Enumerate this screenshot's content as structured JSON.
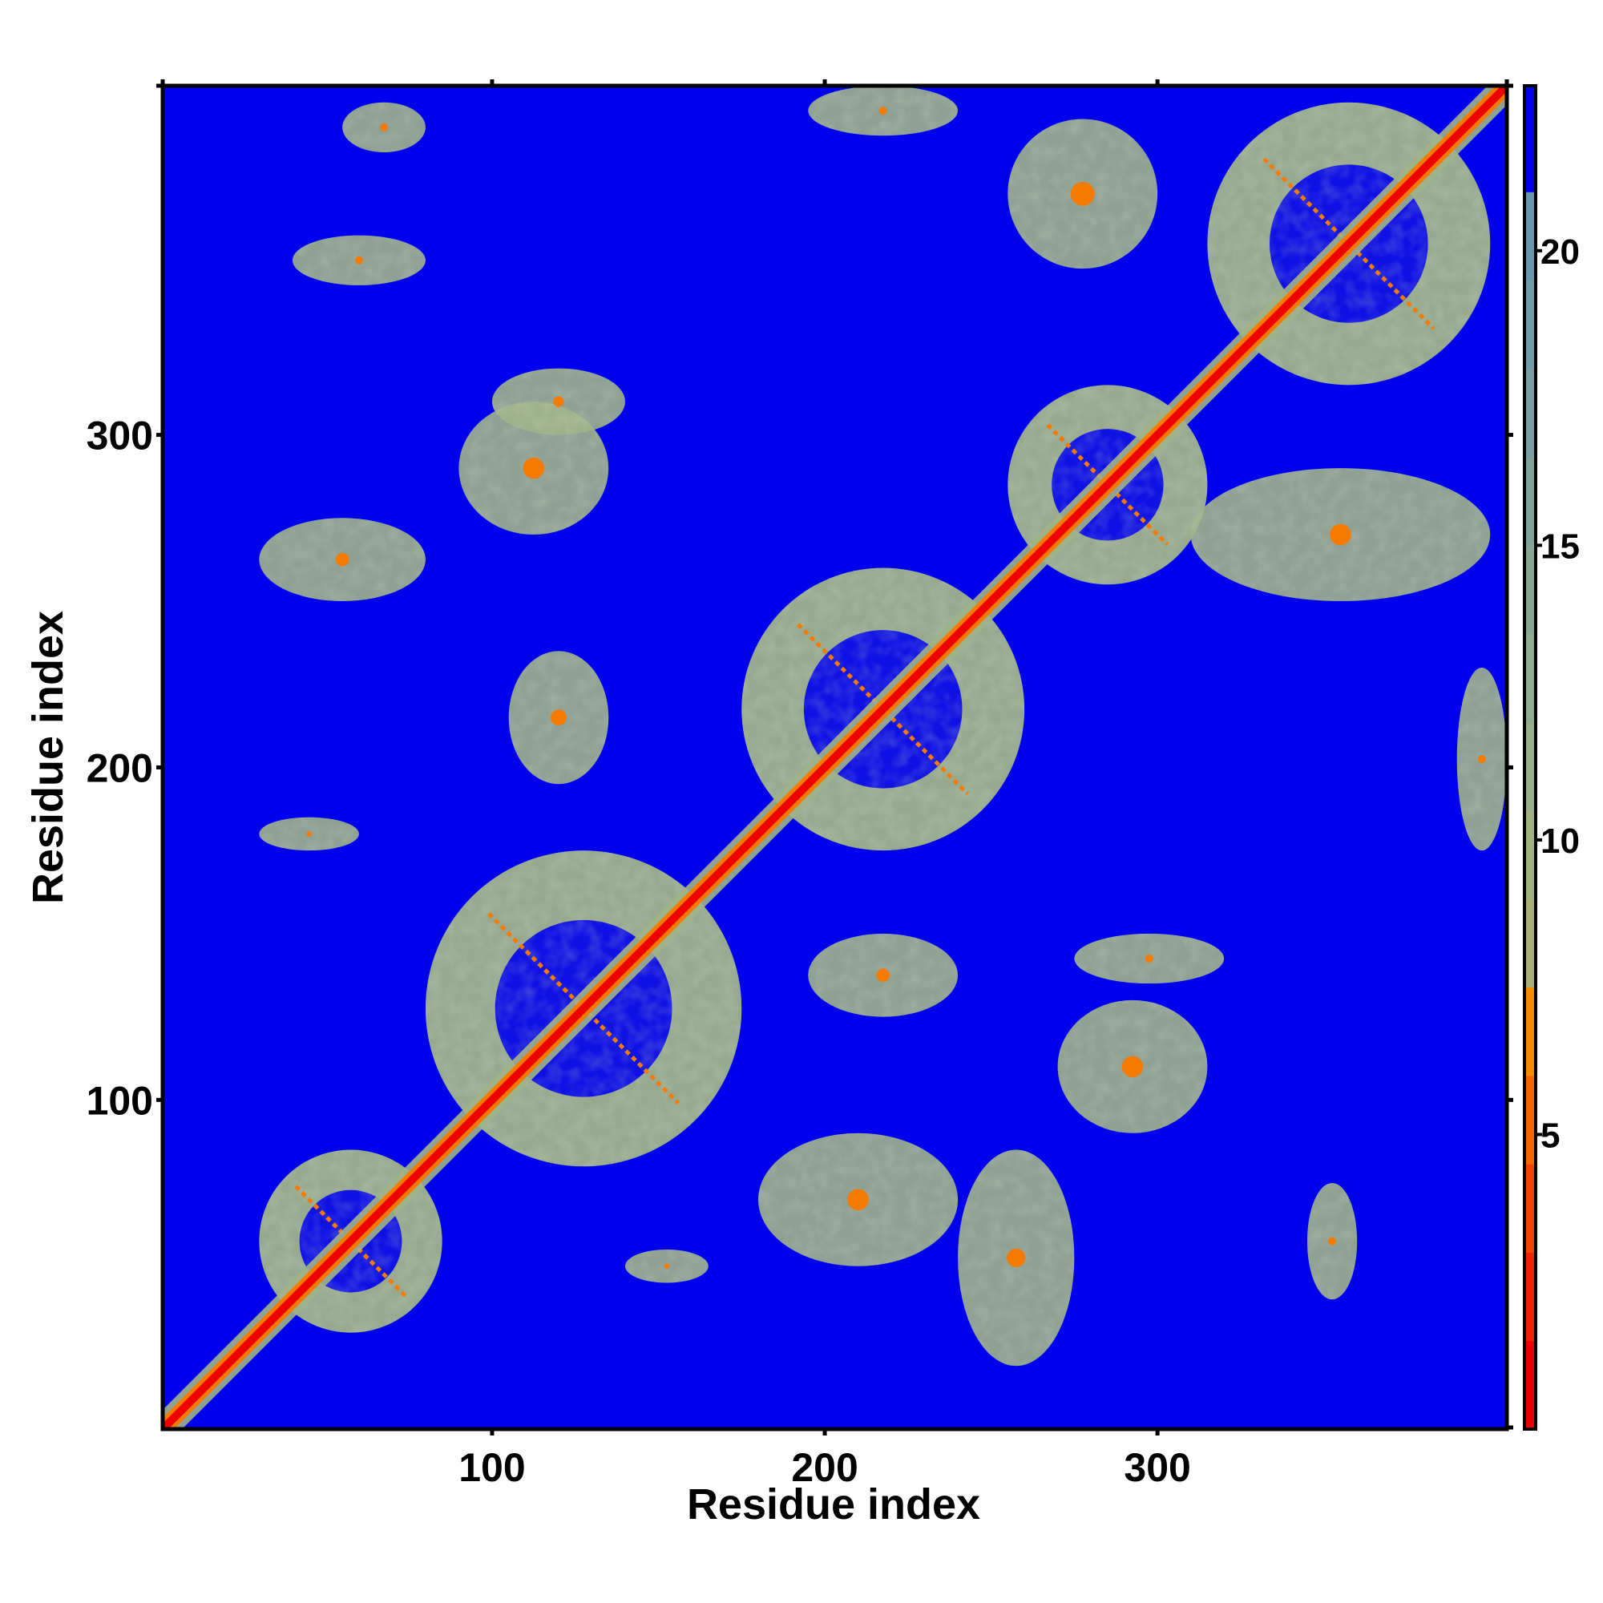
{
  "chart_data": {
    "type": "heatmap",
    "title": "",
    "xlabel": "Residue index",
    "ylabel": "Residue index",
    "xlim": [
      1,
      405
    ],
    "ylim": [
      1,
      405
    ],
    "x_ticks": [
      100,
      200,
      300
    ],
    "y_ticks": [
      100,
      200,
      300
    ],
    "colorbar": {
      "range": [
        0,
        22.8
      ],
      "ticks": [
        5,
        10,
        15,
        20
      ],
      "bands": [
        {
          "from": 0,
          "to": 1.5,
          "color": "#ee0000"
        },
        {
          "from": 1.5,
          "to": 3.0,
          "color": "#f02200"
        },
        {
          "from": 3.0,
          "to": 4.5,
          "color": "#f24400"
        },
        {
          "from": 4.5,
          "to": 6.0,
          "color": "#f46800"
        },
        {
          "from": 6.0,
          "to": 7.5,
          "color": "#f88a00"
        },
        {
          "from": 7.5,
          "to": 9.0,
          "color": "#a8b078"
        },
        {
          "from": 9.0,
          "to": 10.5,
          "color": "#9fb082"
        },
        {
          "from": 10.5,
          "to": 12.0,
          "color": "#98ae88"
        },
        {
          "from": 12.0,
          "to": 13.5,
          "color": "#90aa8e"
        },
        {
          "from": 13.5,
          "to": 15.0,
          "color": "#88a694"
        },
        {
          "from": 15.0,
          "to": 16.5,
          "color": "#80a29a"
        },
        {
          "from": 16.5,
          "to": 18.0,
          "color": "#789ea0"
        },
        {
          "from": 18.0,
          "to": 19.5,
          "color": "#709aa6"
        },
        {
          "from": 19.5,
          "to": 21.0,
          "color": "#6896ac"
        },
        {
          "from": 21.0,
          "to": 22.8,
          "color": "#0000ee"
        }
      ]
    },
    "background_color": "#0000ee",
    "diagonal_color": "#ee0000",
    "contact_color": "#9fb38a",
    "close_contact_color": "#f57a00",
    "regions": [
      {
        "x": [
          30,
          85
        ],
        "y": [
          30,
          85
        ],
        "kind": "domain"
      },
      {
        "x": [
          80,
          175
        ],
        "y": [
          80,
          175
        ],
        "kind": "domain"
      },
      {
        "x": [
          175,
          260
        ],
        "y": [
          175,
          260
        ],
        "kind": "domain"
      },
      {
        "x": [
          255,
          315
        ],
        "y": [
          255,
          315
        ],
        "kind": "domain"
      },
      {
        "x": [
          315,
          400
        ],
        "y": [
          315,
          400
        ],
        "kind": "domain"
      },
      {
        "x": [
          30,
          80
        ],
        "y": [
          250,
          275
        ],
        "kind": "contact"
      },
      {
        "x": [
          90,
          135
        ],
        "y": [
          270,
          310
        ],
        "kind": "contact"
      },
      {
        "x": [
          180,
          240
        ],
        "y": [
          50,
          90
        ],
        "kind": "contact"
      },
      {
        "x": [
          240,
          275
        ],
        "y": [
          20,
          85
        ],
        "kind": "contact"
      },
      {
        "x": [
          270,
          315
        ],
        "y": [
          90,
          130
        ],
        "kind": "contact"
      },
      {
        "x": [
          310,
          400
        ],
        "y": [
          250,
          290
        ],
        "kind": "contact"
      },
      {
        "x": [
          255,
          300
        ],
        "y": [
          350,
          395
        ],
        "kind": "contact"
      },
      {
        "x": [
          40,
          80
        ],
        "y": [
          345,
          360
        ],
        "kind": "contact"
      },
      {
        "x": [
          100,
          140
        ],
        "y": [
          300,
          320
        ],
        "kind": "contact"
      },
      {
        "x": [
          195,
          240
        ],
        "y": [
          125,
          150
        ],
        "kind": "contact"
      },
      {
        "x": [
          105,
          135
        ],
        "y": [
          195,
          235
        ],
        "kind": "contact"
      },
      {
        "x": [
          30,
          60
        ],
        "y": [
          175,
          185
        ],
        "kind": "contact"
      },
      {
        "x": [
          345,
          360
        ],
        "y": [
          40,
          75
        ],
        "kind": "contact"
      },
      {
        "x": [
          390,
          405
        ],
        "y": [
          175,
          230
        ],
        "kind": "contact"
      },
      {
        "x": [
          195,
          240
        ],
        "y": [
          390,
          405
        ],
        "kind": "contact"
      },
      {
        "x": [
          55,
          80
        ],
        "y": [
          385,
          400
        ],
        "kind": "contact"
      },
      {
        "x": [
          140,
          165
        ],
        "y": [
          45,
          55
        ],
        "kind": "contact"
      },
      {
        "x": [
          275,
          320
        ],
        "y": [
          135,
          150
        ],
        "kind": "contact"
      }
    ]
  }
}
